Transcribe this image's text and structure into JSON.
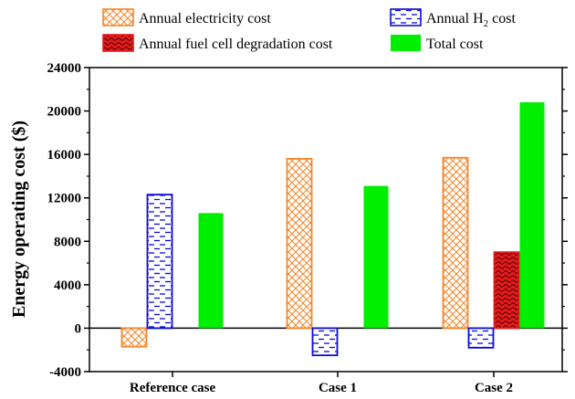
{
  "chart_data": {
    "type": "bar",
    "categories": [
      "Reference case",
      "Case 1",
      "Case 2"
    ],
    "series": [
      {
        "name": "Annual electricity cost",
        "name_parts": [
          "Annual electricity cost",
          "",
          ""
        ],
        "values": [
          -1700,
          15600,
          15700
        ],
        "color": "#f5862a",
        "pattern": "crosshatch"
      },
      {
        "name": "Annual H2 cost",
        "name_parts": [
          "Annual H",
          "2",
          " cost"
        ],
        "values": [
          12300,
          -2500,
          -1800
        ],
        "color": "#0b0bd8",
        "pattern": "dashes"
      },
      {
        "name": "Annual fuel cell degradation cost",
        "name_parts": [
          "Annual fuel cell degradation cost",
          "",
          ""
        ],
        "values": [
          0,
          0,
          7000
        ],
        "color": "#e31a1c",
        "pattern": "waves"
      },
      {
        "name": "Total cost",
        "name_parts": [
          "Total cost",
          "",
          ""
        ],
        "values": [
          10600,
          13100,
          20800
        ],
        "color": "#00ee00",
        "pattern": "solid"
      }
    ],
    "ylabel": "Energy operating cost ($)",
    "xlabel": "",
    "ylim": [
      -4000,
      24000
    ],
    "yticks": [
      -4000,
      0,
      4000,
      8000,
      12000,
      16000,
      20000,
      24000
    ],
    "grid": false,
    "legend": "top, two columns"
  }
}
